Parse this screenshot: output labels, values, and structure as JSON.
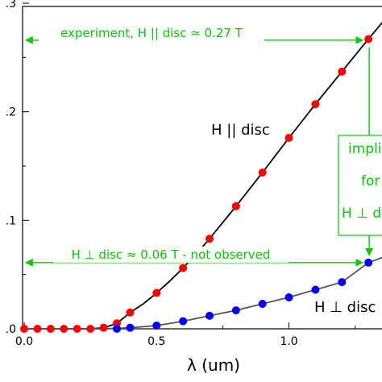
{
  "chart_data": {
    "type": "line",
    "xlabel": "λ (um)",
    "ylabel": "",
    "xlim": [
      0.0,
      1.4
    ],
    "ylim": [
      0.0,
      0.3
    ],
    "x_ticks": [
      "0.0",
      "0.5",
      "1.0"
    ],
    "y_ticks": [
      ".0",
      ".1",
      ".2",
      ".3"
    ],
    "grid": false,
    "series": [
      {
        "name": "H || disc",
        "color": "#ff0000",
        "line_color": "#000000",
        "points": [
          [
            0.0,
            0.0
          ],
          [
            0.05,
            0.0
          ],
          [
            0.1,
            0.0
          ],
          [
            0.15,
            0.0
          ],
          [
            0.2,
            0.0
          ],
          [
            0.25,
            0.0
          ],
          [
            0.3,
            0.001
          ],
          [
            0.35,
            0.005
          ],
          [
            0.4,
            0.015
          ],
          [
            0.5,
            0.033
          ],
          [
            0.6,
            0.056
          ],
          [
            0.7,
            0.083
          ],
          [
            0.8,
            0.113
          ],
          [
            0.9,
            0.144
          ],
          [
            1.0,
            0.176
          ],
          [
            1.1,
            0.207
          ],
          [
            1.2,
            0.237
          ],
          [
            1.3,
            0.267
          ]
        ],
        "curve": [
          [
            0.0,
            0.0
          ],
          [
            0.25,
            0.0
          ],
          [
            0.3,
            0.001
          ],
          [
            0.35,
            0.005
          ],
          [
            0.4,
            0.015
          ],
          [
            0.45,
            0.023
          ],
          [
            0.5,
            0.033
          ],
          [
            0.55,
            0.044
          ],
          [
            0.6,
            0.056
          ],
          [
            0.65,
            0.069
          ],
          [
            0.7,
            0.083
          ],
          [
            0.8,
            0.113
          ],
          [
            0.9,
            0.144
          ],
          [
            1.0,
            0.176
          ],
          [
            1.1,
            0.207
          ],
          [
            1.2,
            0.237
          ],
          [
            1.3,
            0.267
          ],
          [
            1.4,
            0.296
          ]
        ]
      },
      {
        "name": "H ⊥ disc",
        "color": "#0000ff",
        "line_color": "#555555",
        "points": [
          [
            0.35,
            0.0
          ],
          [
            0.4,
            0.001
          ],
          [
            0.5,
            0.003
          ],
          [
            0.6,
            0.007
          ],
          [
            0.7,
            0.012
          ],
          [
            0.8,
            0.017
          ],
          [
            0.9,
            0.023
          ],
          [
            1.0,
            0.029
          ],
          [
            1.1,
            0.036
          ],
          [
            1.2,
            0.043
          ],
          [
            1.3,
            0.061
          ]
        ],
        "curve": [
          [
            0.0,
            0.0
          ],
          [
            0.3,
            0.0
          ],
          [
            0.4,
            0.001
          ],
          [
            0.5,
            0.003
          ],
          [
            0.6,
            0.007
          ],
          [
            0.7,
            0.012
          ],
          [
            0.8,
            0.017
          ],
          [
            0.9,
            0.023
          ],
          [
            1.0,
            0.029
          ],
          [
            1.1,
            0.036
          ],
          [
            1.2,
            0.043
          ],
          [
            1.3,
            0.061
          ],
          [
            1.4,
            0.07
          ]
        ]
      }
    ],
    "curve_labels": {
      "parallel": "H || disc",
      "perpendicular": "H ⊥ disc"
    },
    "annotations": {
      "top_arrow_text": "experiment, H || disc ≈ 0.27 T",
      "top_arrow_y": 0.266,
      "bottom_arrow_text": "H ⊥ disc ≈ 0.06 T - not observed",
      "bottom_arrow_y": 0.061,
      "arrow_x_start": 0.0,
      "arrow_x_end": 1.3,
      "side_box_lines": [
        "implie",
        "for",
        "H ⊥ d"
      ],
      "color": "#00cc00"
    }
  }
}
